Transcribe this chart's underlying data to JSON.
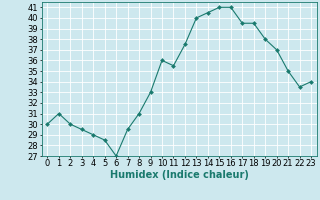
{
  "x": [
    0,
    1,
    2,
    3,
    4,
    5,
    6,
    7,
    8,
    9,
    10,
    11,
    12,
    13,
    14,
    15,
    16,
    17,
    18,
    19,
    20,
    21,
    22,
    23
  ],
  "y": [
    30,
    31,
    30,
    29.5,
    29,
    28.5,
    27,
    29.5,
    31,
    33,
    36,
    35.5,
    37.5,
    40,
    40.5,
    41,
    41,
    39.5,
    39.5,
    38,
    37,
    35,
    33.5,
    34
  ],
  "line_color": "#1a7a6e",
  "marker": "D",
  "marker_size": 2.0,
  "bg_color": "#cde8ee",
  "grid_color": "#ffffff",
  "xlabel": "Humidex (Indice chaleur)",
  "ylim": [
    27,
    41.5
  ],
  "xlim": [
    -0.5,
    23.5
  ],
  "yticks": [
    27,
    28,
    29,
    30,
    31,
    32,
    33,
    34,
    35,
    36,
    37,
    38,
    39,
    40,
    41
  ],
  "xticks": [
    0,
    1,
    2,
    3,
    4,
    5,
    6,
    7,
    8,
    9,
    10,
    11,
    12,
    13,
    14,
    15,
    16,
    17,
    18,
    19,
    20,
    21,
    22,
    23
  ],
  "font_size": 6.0,
  "label_font_size": 7.0,
  "linewidth": 0.8
}
